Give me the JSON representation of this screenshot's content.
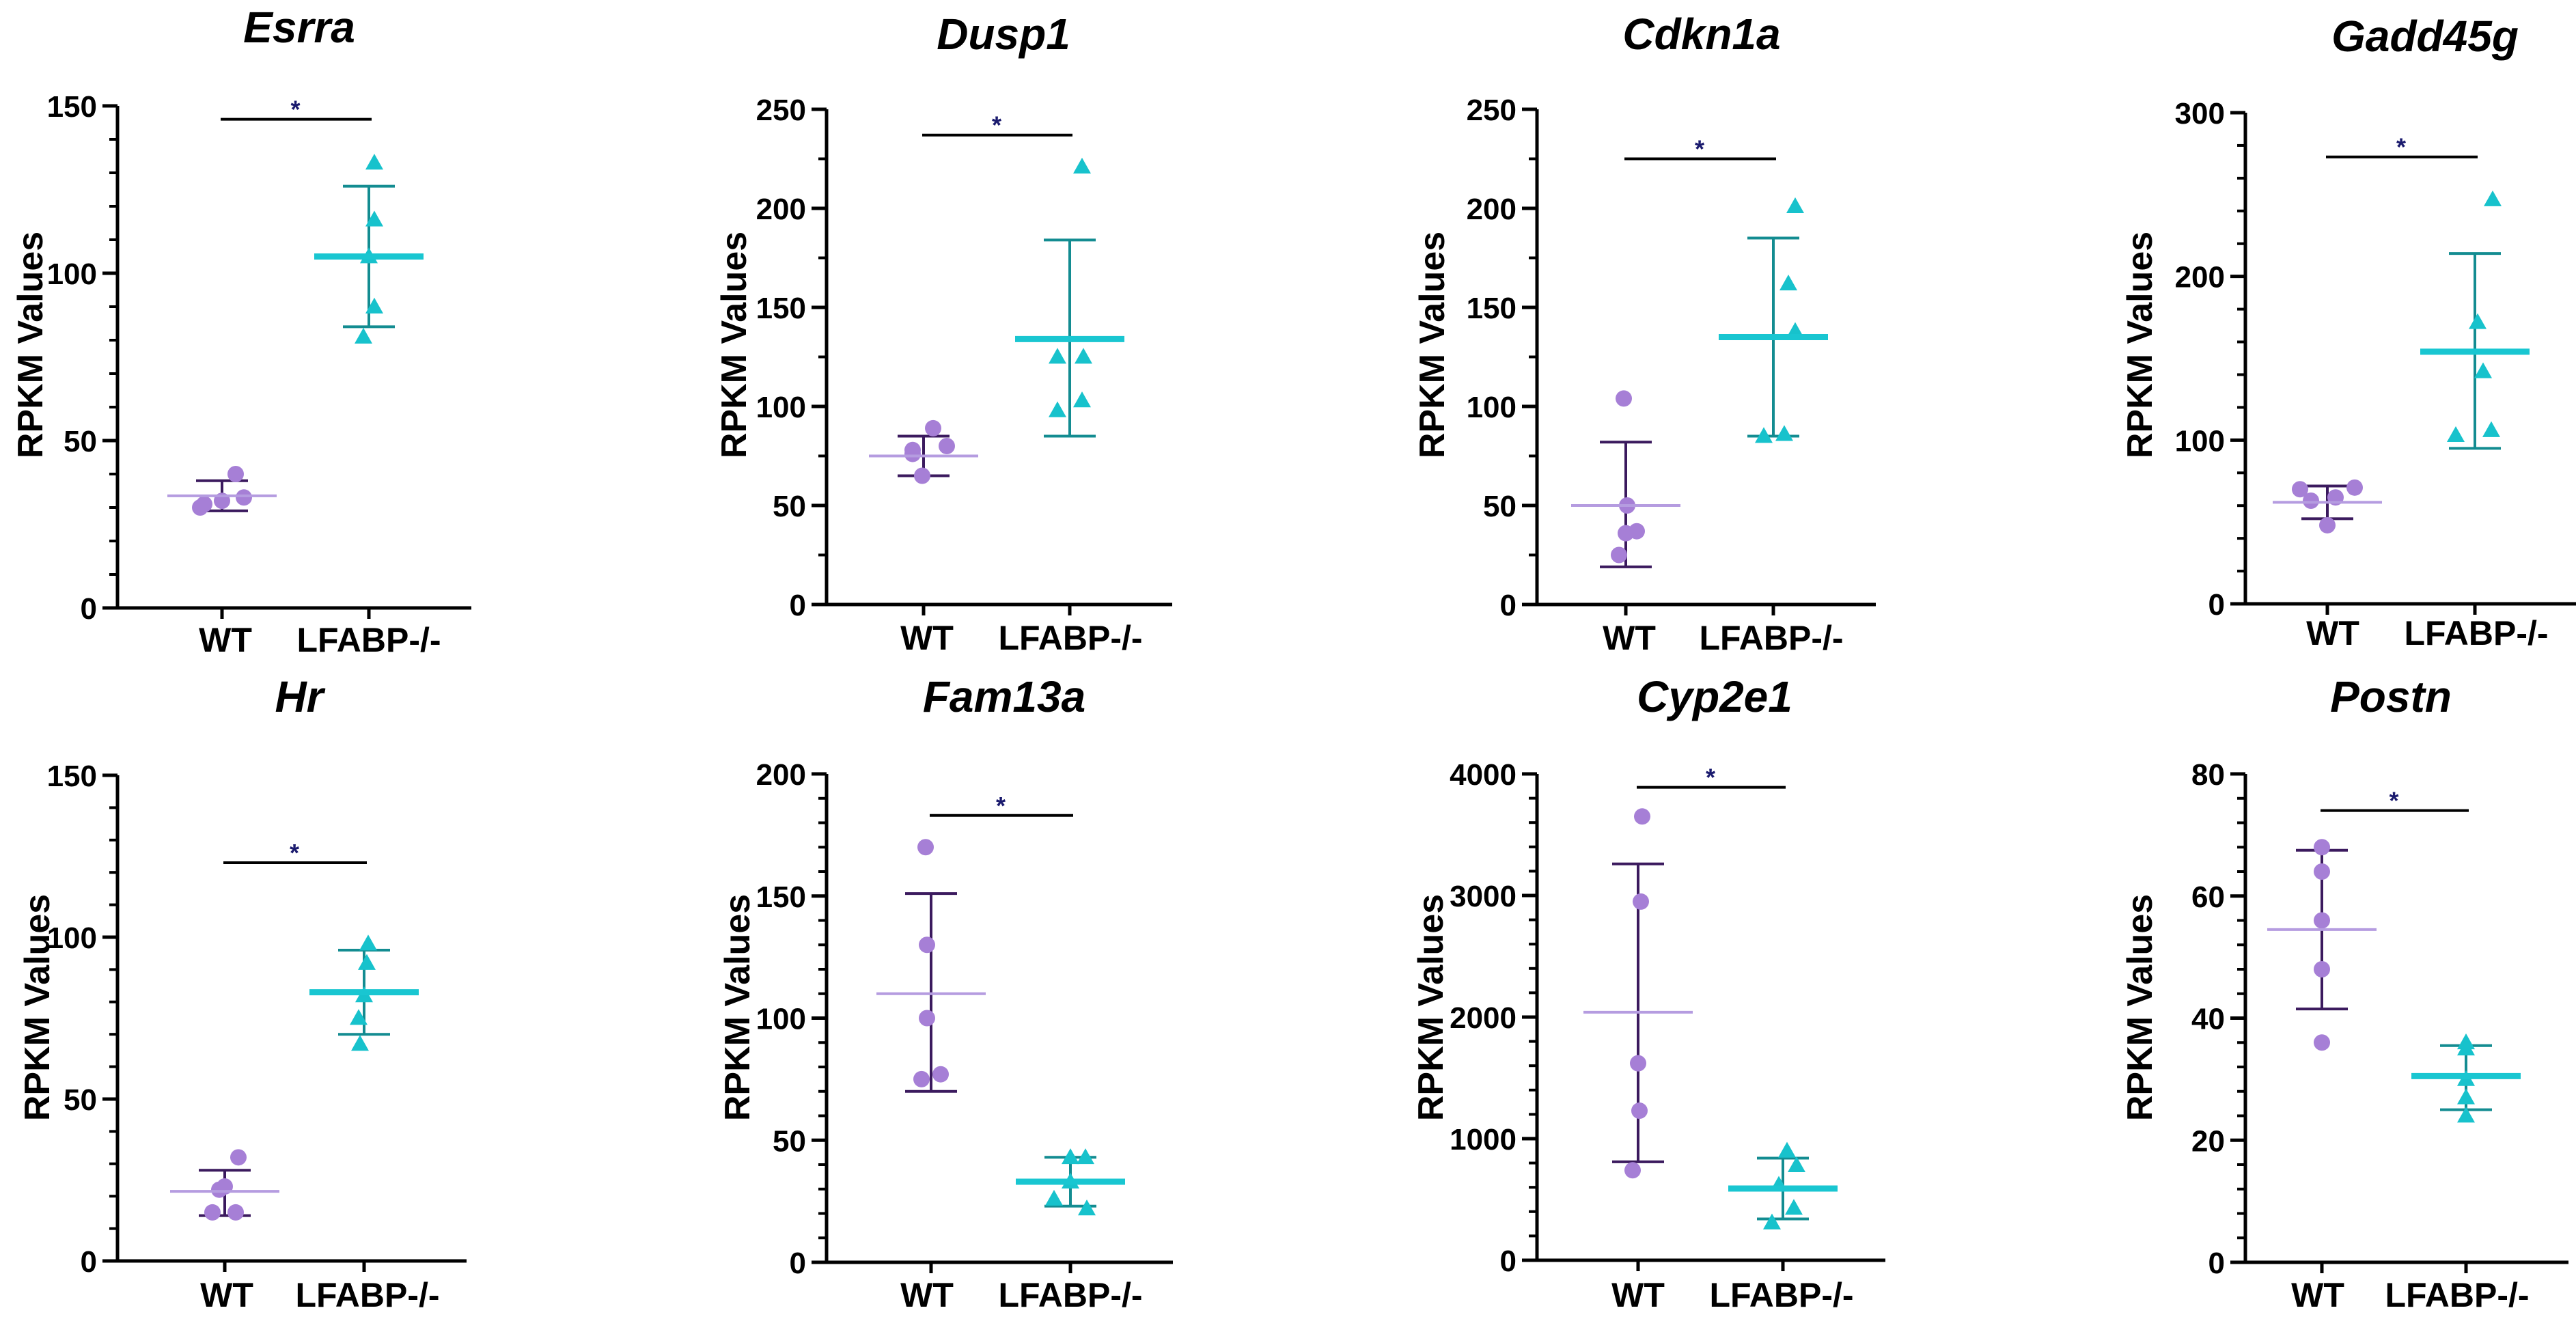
{
  "y_axis_label": "RPKM Values",
  "colors": {
    "wt_point": "#a67fd6",
    "wt_mean": "#b59ce0",
    "wt_error": "#3b1a5e",
    "ko_point": "#17c2cc",
    "ko_mean": "#19c6d1",
    "ko_error": "#138c91",
    "significance": "#1a1a6e",
    "axis": "#000000"
  },
  "chart_data": [
    {
      "type": "scatter",
      "title": "Esrra",
      "ylabel": "RPKM Values",
      "categories": [
        "WT",
        "LFABP-/-"
      ],
      "ylim": [
        0,
        150
      ],
      "yticks": [
        0,
        50,
        100,
        150
      ],
      "minor_ticks": 5,
      "series": [
        {
          "name": "WT",
          "values": [
            30,
            40,
            32,
            33,
            31
          ],
          "mean": 33.5,
          "sd_low": 29,
          "sd_high": 38
        },
        {
          "name": "LFABP-/-",
          "values": [
            133,
            116,
            105,
            90,
            81
          ],
          "mean": 105,
          "sd_low": 84,
          "sd_high": 126
        }
      ],
      "significance": "*",
      "sig_y": 146
    },
    {
      "type": "scatter",
      "title": "Dusp1",
      "ylabel": "RPKM Values",
      "categories": [
        "WT",
        "LFABP-/-"
      ],
      "ylim": [
        0,
        250
      ],
      "yticks": [
        0,
        50,
        100,
        150,
        200,
        250
      ],
      "minor_ticks": 2,
      "series": [
        {
          "name": "WT",
          "values": [
            76,
            89,
            80,
            78,
            65
          ],
          "mean": 75,
          "sd_low": 65,
          "sd_high": 85
        },
        {
          "name": "LFABP-/-",
          "values": [
            221,
            125,
            125,
            98,
            103
          ],
          "mean": 134,
          "sd_low": 85,
          "sd_high": 184
        }
      ],
      "significance": "*",
      "sig_y": 237
    },
    {
      "type": "scatter",
      "title": "Cdkn1a",
      "ylabel": "RPKM Values",
      "categories": [
        "WT",
        "LFABP-/-"
      ],
      "ylim": [
        0,
        250
      ],
      "yticks": [
        0,
        50,
        100,
        150,
        200,
        250
      ],
      "minor_ticks": 2,
      "series": [
        {
          "name": "WT",
          "values": [
            104,
            50,
            36,
            25,
            37
          ],
          "mean": 50,
          "sd_low": 19,
          "sd_high": 82
        },
        {
          "name": "LFABP-/-",
          "values": [
            201,
            162,
            138,
            85,
            86
          ],
          "mean": 135,
          "sd_low": 85,
          "sd_high": 185
        }
      ],
      "significance": "*",
      "sig_y": 225
    },
    {
      "type": "scatter",
      "title": "Gadd45g",
      "ylabel": "RPKM Values",
      "categories": [
        "WT",
        "LFABP-/-"
      ],
      "ylim": [
        0,
        300
      ],
      "yticks": [
        0,
        100,
        200,
        300
      ],
      "minor_ticks": 5,
      "series": [
        {
          "name": "WT",
          "values": [
            70,
            65,
            48,
            71,
            63
          ],
          "mean": 62,
          "sd_low": 52,
          "sd_high": 72
        },
        {
          "name": "LFABP-/-",
          "values": [
            247,
            172,
            142,
            103,
            106
          ],
          "mean": 154,
          "sd_low": 95,
          "sd_high": 214
        },
        {
          "name": "_pad",
          "values": []
        }
      ],
      "significance": "*",
      "sig_y": 273
    },
    {
      "type": "scatter",
      "title": "Hr",
      "ylabel": "RPKM Values",
      "categories": [
        "WT",
        "LFABP-/-"
      ],
      "ylim": [
        0,
        150
      ],
      "yticks": [
        0,
        50,
        100,
        150
      ],
      "minor_ticks": 5,
      "series": [
        {
          "name": "WT",
          "values": [
            22,
            32,
            23,
            15,
            15
          ],
          "mean": 21.5,
          "sd_low": 14,
          "sd_high": 28
        },
        {
          "name": "LFABP-/-",
          "values": [
            98,
            92,
            82,
            75,
            67
          ],
          "mean": 83,
          "sd_low": 70,
          "sd_high": 96
        }
      ],
      "significance": "*",
      "sig_y": 123
    },
    {
      "type": "scatter",
      "title": "Fam13a",
      "ylabel": "RPKM Values",
      "categories": [
        "WT",
        "LFABP-/-"
      ],
      "ylim": [
        0,
        200
      ],
      "yticks": [
        0,
        50,
        100,
        150,
        200
      ],
      "minor_ticks": 5,
      "series": [
        {
          "name": "WT",
          "values": [
            170,
            130,
            100,
            75,
            77
          ],
          "mean": 110,
          "sd_low": 70,
          "sd_high": 151
        },
        {
          "name": "LFABP-/-",
          "values": [
            43,
            43,
            33,
            26,
            22
          ],
          "mean": 33,
          "sd_low": 23,
          "sd_high": 43
        }
      ],
      "significance": "*",
      "sig_y": 183
    },
    {
      "type": "scatter",
      "title": "Cyp2e1",
      "ylabel": "RPKM Values",
      "categories": [
        "WT",
        "LFABP-/-"
      ],
      "ylim": [
        0,
        4000
      ],
      "yticks": [
        0,
        1000,
        2000,
        3000,
        4000
      ],
      "minor_ticks": 5,
      "series": [
        {
          "name": "WT",
          "values": [
            3650,
            2950,
            1620,
            1230,
            740
          ],
          "mean": 2040,
          "sd_low": 810,
          "sd_high": 3260
        },
        {
          "name": "LFABP-/-",
          "values": [
            900,
            780,
            620,
            430,
            310
          ],
          "mean": 590,
          "sd_low": 340,
          "sd_high": 840
        }
      ],
      "significance": "*",
      "sig_y": 3890
    },
    {
      "type": "scatter",
      "title": "Postn",
      "ylabel": "RPKM Values",
      "categories": [
        "WT",
        "LFABP-/-"
      ],
      "ylim": [
        0,
        80
      ],
      "yticks": [
        0,
        20,
        40,
        60,
        80
      ],
      "minor_ticks": 5,
      "series": [
        {
          "name": "WT",
          "values": [
            68,
            64,
            56,
            48,
            36
          ],
          "mean": 54.5,
          "sd_low": 41.5,
          "sd_high": 67.5
        },
        {
          "name": "LFABP-/-",
          "values": [
            36,
            35,
            30,
            27,
            24
          ],
          "mean": 30.5,
          "sd_low": 25,
          "sd_high": 35.5
        }
      ],
      "significance": "*",
      "sig_y": 74
    }
  ]
}
